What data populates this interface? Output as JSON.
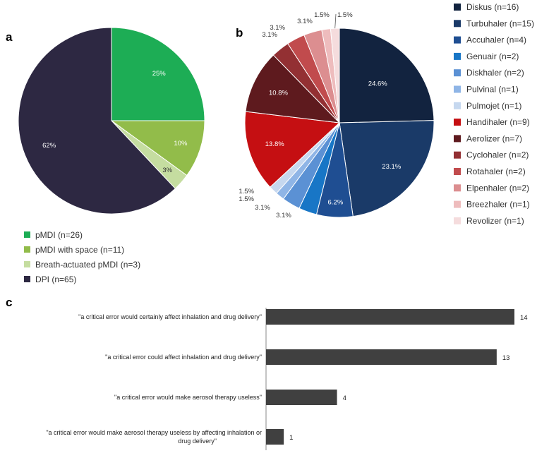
{
  "panels": {
    "a": "a",
    "b": "b",
    "c": "c"
  },
  "chart_data": [
    {
      "type": "pie",
      "panel": "a",
      "categories": [
        "pMDI (n=26)",
        "pMDI with space (n=11)",
        "Breath-actuated pMDI (n=3)",
        "DPI (n=65)"
      ],
      "values": [
        25,
        10,
        3,
        62
      ],
      "labels": [
        "25%",
        "10%",
        "3%",
        "62%"
      ],
      "colors": [
        "#1dad55",
        "#92bc4a",
        "#c5dda0",
        "#2d2842"
      ],
      "legend_position": "bottom-left"
    },
    {
      "type": "pie",
      "panel": "b",
      "categories": [
        "Diskus (n=16)",
        "Turbuhaler (n=15)",
        "Accuhaler (n=4)",
        "Genuair (n=2)",
        "Diskhaler (n=2)",
        "Pulvinal (n=1)",
        "Pulmojet (n=1)",
        "Handihaler (n=9)",
        "Aerolizer (n=7)",
        "Cyclohaler (n=2)",
        "Rotahaler (n=2)",
        "Elpenhaler (n=2)",
        "Breezhaler (n=1)",
        "Revolizer (n=1)"
      ],
      "values": [
        24.6,
        23.1,
        6.2,
        3.1,
        3.1,
        1.5,
        1.5,
        13.8,
        10.8,
        3.1,
        3.1,
        3.1,
        1.5,
        1.5
      ],
      "labels": [
        "24.6%",
        "23.1%",
        "6.2%",
        "3.1%",
        "3.1%",
        "1.5%",
        "1.5%",
        "13.8%",
        "10.8%",
        "3.1%",
        "3.1%",
        "3.1%",
        "1.5%",
        "1.5%"
      ],
      "colors": [
        "#12233f",
        "#1a3a68",
        "#1f4e92",
        "#1876c6",
        "#5b91d4",
        "#8fb5e6",
        "#c6d8ef",
        "#c50f12",
        "#5e1a1e",
        "#933033",
        "#c14b4d",
        "#dc8e90",
        "#eebcbd",
        "#f5dcdd"
      ],
      "legend_position": "right"
    },
    {
      "type": "bar",
      "panel": "c",
      "orientation": "horizontal",
      "categories": [
        "\"a critical error would certainly affect inhalation and drug delivery\"",
        "\"a critical error could affect inhalation and drug delivery\"",
        "\"a critical error would make aerosol therapy useless\"",
        "\"a critical error would make aerosol therapy useless by affecting inhalation or drug delivery\""
      ],
      "values": [
        14,
        13,
        4,
        1
      ],
      "color": "#404040",
      "xlim": [
        0,
        14
      ]
    }
  ]
}
